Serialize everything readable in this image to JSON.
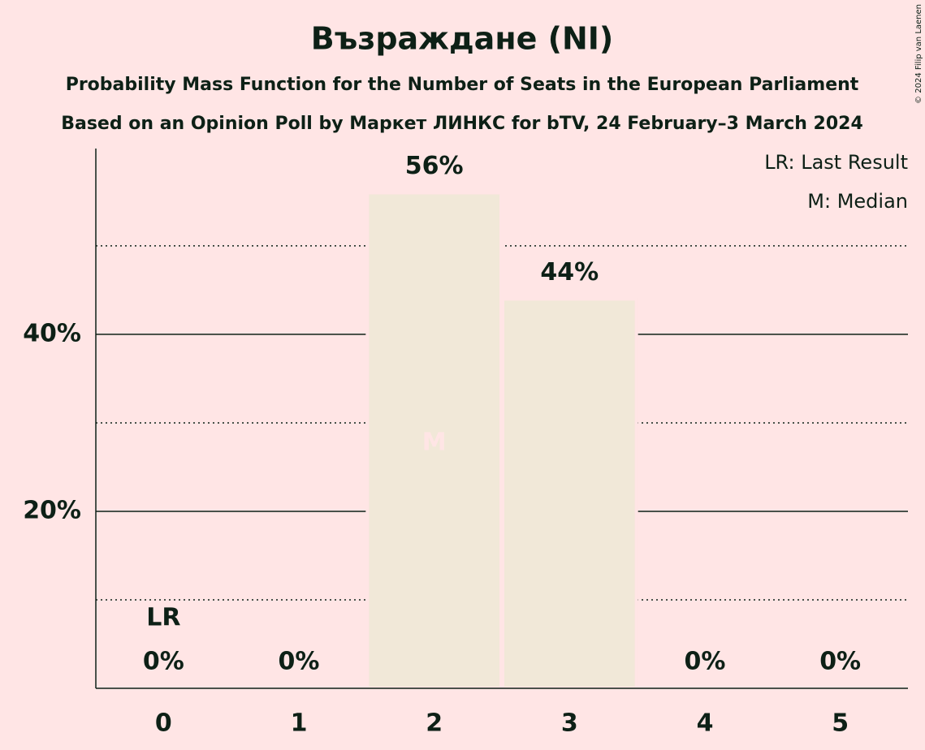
{
  "chart_data": {
    "type": "bar",
    "title": "Възраждане (NI)",
    "subtitle": "Probability Mass Function for the Number of Seats in the European Parliament",
    "subtitle2": "Based on an Opinion Poll by Маркет ЛИНКС for bTV, 24 February–3 March 2024",
    "credit": "© 2024 Filip van Laenen",
    "categories": [
      "0",
      "1",
      "2",
      "3",
      "4",
      "5"
    ],
    "values": [
      0,
      0,
      56,
      44,
      0,
      0
    ],
    "value_labels": [
      "0%",
      "0%",
      "56%",
      "44%",
      "0%",
      "0%"
    ],
    "color": "#f1e8d8",
    "ylim": [
      0,
      61
    ],
    "yticks": [
      {
        "value": 20,
        "label": "20%"
      },
      {
        "value": 40,
        "label": "40%"
      }
    ],
    "minor_grid": [
      10,
      30,
      50
    ],
    "grid": true,
    "last_result": {
      "label": "LR",
      "seats": 0
    },
    "median": {
      "label": "M",
      "seats": 2
    },
    "legend": [
      "LR: Last Result",
      "M: Median"
    ],
    "legend_position": "top-right"
  }
}
